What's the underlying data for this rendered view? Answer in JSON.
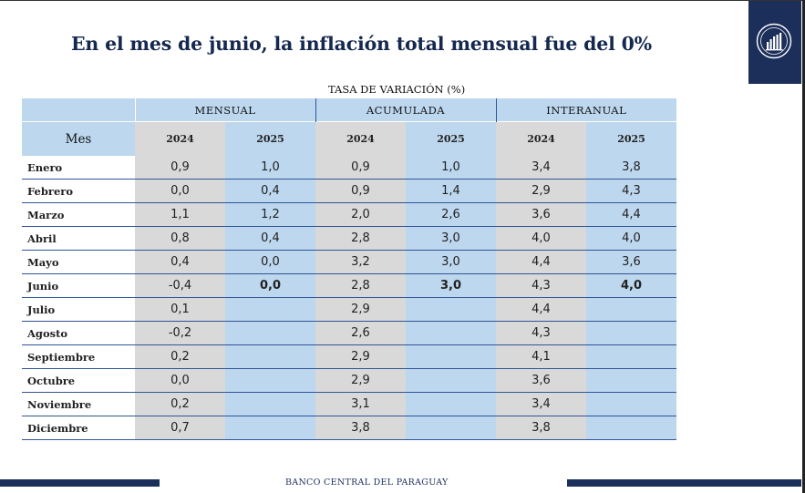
{
  "title": "En el mes de junio, la inflación total mensual fue del 0%",
  "logo_color": "#1c2e5a",
  "logo_icon": "bcp-seal-icon",
  "subtitle": "TASA DE VARIACIÓN (%)",
  "table": {
    "month_header": "Mes",
    "groups": [
      "MENSUAL",
      "ACUMULADA",
      "INTERANUAL"
    ],
    "years": [
      "2024",
      "2025",
      "2024",
      "2025",
      "2024",
      "2025"
    ],
    "rows": [
      {
        "mes": "Enero",
        "v": [
          "0,9",
          "1,0",
          "0,9",
          "1,0",
          "3,4",
          "3,8"
        ]
      },
      {
        "mes": "Febrero",
        "v": [
          "0,0",
          "0,4",
          "0,9",
          "1,4",
          "2,9",
          "4,3"
        ]
      },
      {
        "mes": "Marzo",
        "v": [
          "1,1",
          "1,2",
          "2,0",
          "2,6",
          "3,6",
          "4,4"
        ]
      },
      {
        "mes": "Abril",
        "v": [
          "0,8",
          "0,4",
          "2,8",
          "3,0",
          "4,0",
          "4,0"
        ]
      },
      {
        "mes": "Mayo",
        "v": [
          "0,4",
          "0,0",
          "3,2",
          "3,0",
          "4,4",
          "3,6"
        ]
      },
      {
        "mes": "Junio",
        "v": [
          "-0,4",
          "0,0",
          "2,8",
          "3,0",
          "4,3",
          "4,0"
        ]
      },
      {
        "mes": "Julio",
        "v": [
          "0,1",
          "",
          "2,9",
          "",
          "4,4",
          ""
        ]
      },
      {
        "mes": "Agosto",
        "v": [
          "-0,2",
          "",
          "2,6",
          "",
          "4,3",
          ""
        ]
      },
      {
        "mes": "Septiembre",
        "v": [
          "0,2",
          "",
          "2,9",
          "",
          "4,1",
          ""
        ]
      },
      {
        "mes": "Octubre",
        "v": [
          "0,0",
          "",
          "2,9",
          "",
          "3,6",
          ""
        ]
      },
      {
        "mes": "Noviembre",
        "v": [
          "0,2",
          "",
          "3,1",
          "",
          "3,4",
          ""
        ]
      },
      {
        "mes": "Diciembre",
        "v": [
          "0,7",
          "",
          "3,8",
          "",
          "3,8",
          ""
        ]
      }
    ],
    "highlight_row": "Junio"
  },
  "footer": "BANCO CENTRAL DEL PARAGUAY"
}
